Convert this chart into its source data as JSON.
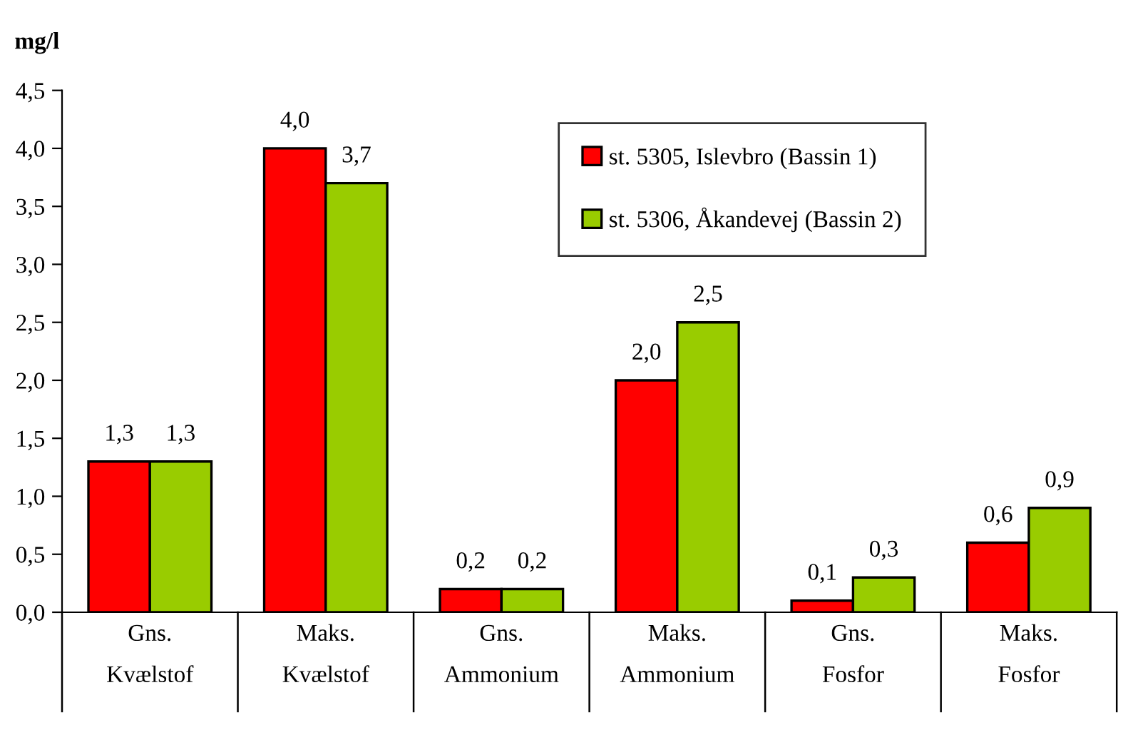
{
  "chart_data": {
    "type": "bar",
    "ylabel": "mg/l",
    "categories": [
      "Gns.\nKvælstof",
      "Maks.\nKvælstof",
      "Gns.\nAmmonium",
      "Maks.\nAmmonium",
      "Gns.\nFosfor",
      "Maks.\nFosfor"
    ],
    "series": [
      {
        "name": "st. 5305, Islevbro (Bassin 1)",
        "color": "#ff0000",
        "values": [
          1.3,
          4.0,
          0.2,
          2.0,
          0.1,
          0.6
        ],
        "value_labels": [
          "1,3",
          "4,0",
          "0,2",
          "2,0",
          "0,1",
          "0,6"
        ]
      },
      {
        "name": "st. 5306, Åkandevej (Bassin 2)",
        "color": "#99cc00",
        "values": [
          1.3,
          3.7,
          0.2,
          2.5,
          0.3,
          0.9
        ],
        "value_labels": [
          "1,3",
          "3,7",
          "0,2",
          "2,5",
          "0,3",
          "0,9"
        ]
      }
    ],
    "ylim": [
      0,
      4.5
    ],
    "yticks": [
      {
        "value": 0,
        "label": "0,0"
      },
      {
        "value": 0.5,
        "label": "0,5"
      },
      {
        "value": 1,
        "label": "1,0"
      },
      {
        "value": 1.5,
        "label": "1,5"
      },
      {
        "value": 2,
        "label": "2,0"
      },
      {
        "value": 2.5,
        "label": "2,5"
      },
      {
        "value": 3,
        "label": "3,0"
      },
      {
        "value": 3.5,
        "label": "3,5"
      },
      {
        "value": 4,
        "label": "4,0"
      },
      {
        "value": 4.5,
        "label": "4,5"
      }
    ],
    "legend": "top right",
    "grid": false
  }
}
